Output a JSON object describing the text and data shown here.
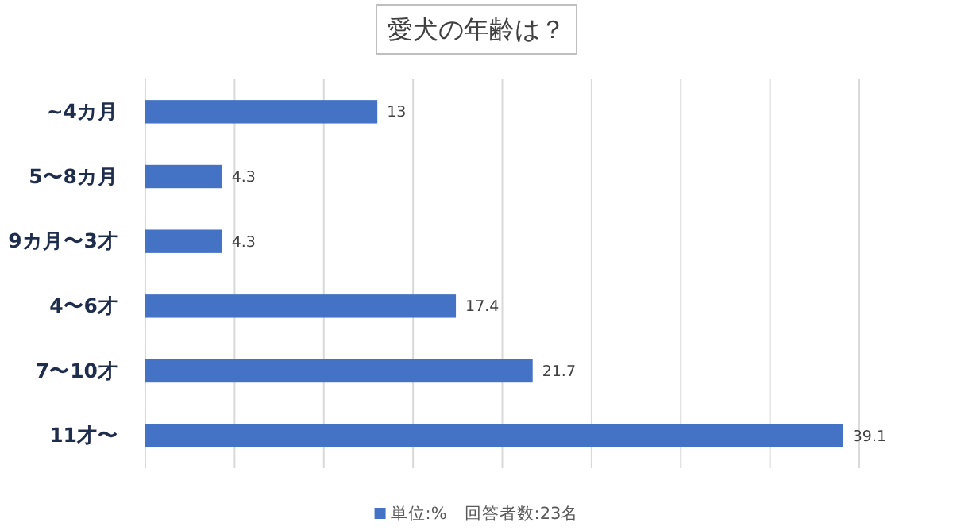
{
  "chart_data": {
    "type": "bar",
    "title": "愛犬の年齢は？",
    "orientation": "horizontal",
    "categories": [
      "~4カ月",
      "5〜8カ月",
      "9カ月〜3才",
      "4〜6才",
      "7〜10才",
      "11才〜"
    ],
    "series": [
      {
        "name": "単位:%　回答者数:23名",
        "color": "#4472c4",
        "values": [
          13,
          4.3,
          4.3,
          17.4,
          21.7,
          39.1
        ]
      }
    ],
    "xlim": [
      0,
      40
    ],
    "xticks": [
      {
        "value": 0,
        "label": null
      },
      {
        "value": 5,
        "label": null
      },
      {
        "value": 10,
        "label": null
      },
      {
        "value": 15,
        "label": null
      },
      {
        "value": 20,
        "label": null
      },
      {
        "value": 25,
        "label": null
      },
      {
        "value": 30,
        "label": null
      },
      {
        "value": 35,
        "label": null
      },
      {
        "value": 40,
        "label": null
      }
    ],
    "tick_labels": "y",
    "grid": "x",
    "data_labels": true,
    "legend": "bottom"
  }
}
